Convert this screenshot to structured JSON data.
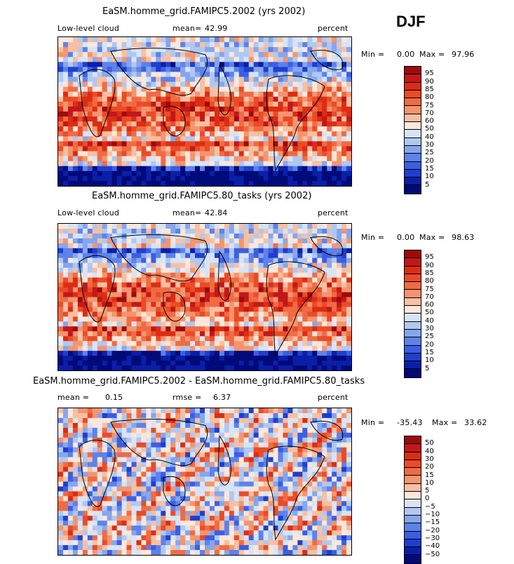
{
  "season": "DJF",
  "chart_data": [
    {
      "type": "heatmap",
      "title": "EaSM.homme_grid.FAMIPC5.2002 (yrs 2002)",
      "variable": "Low-level cloud",
      "mean_label": "mean=",
      "mean": "42.99",
      "units": "percent",
      "min_label": "Min =",
      "min": "0.00",
      "max_label": "Max =",
      "max": "97.96",
      "levels": [
        "95",
        "90",
        "85",
        "80",
        "75",
        "70",
        "60",
        "50",
        "40",
        "30",
        "25",
        "20",
        "15",
        "10",
        "5"
      ],
      "colors": [
        "#9e0a0c",
        "#c1181a",
        "#dc2d14",
        "#eb4b27",
        "#f06b43",
        "#f4956f",
        "#f7c0a3",
        "#fbe7db",
        "#d8e4f6",
        "#b0c8f0",
        "#86a6ec",
        "#5d82ea",
        "#3b5ee3",
        "#1e3fcd",
        "#0a1fa8",
        "#000a78"
      ]
    },
    {
      "type": "heatmap",
      "title": "EaSM.homme_grid.FAMIPC5.80_tasks (yrs 2002)",
      "variable": "Low-level cloud",
      "mean_label": "mean=",
      "mean": "42.84",
      "units": "percent",
      "min_label": "Min =",
      "min": "0.00",
      "max_label": "Max =",
      "max": "98.63",
      "levels": [
        "95",
        "90",
        "85",
        "80",
        "75",
        "70",
        "60",
        "50",
        "40",
        "30",
        "25",
        "20",
        "15",
        "10",
        "5"
      ],
      "colors": [
        "#9e0a0c",
        "#c1181a",
        "#dc2d14",
        "#eb4b27",
        "#f06b43",
        "#f4956f",
        "#f7c0a3",
        "#fbe7db",
        "#d8e4f6",
        "#b0c8f0",
        "#86a6ec",
        "#5d82ea",
        "#3b5ee3",
        "#1e3fcd",
        "#0a1fa8",
        "#000a78"
      ]
    },
    {
      "type": "heatmap",
      "title": "EaSM.homme_grid.FAMIPC5.2002 - EaSM.homme_grid.FAMIPC5.80_tasks",
      "mean_label": "mean =",
      "mean": "0.15",
      "rmse_label": "rmse =",
      "rmse": "6.37",
      "units": "percent",
      "min_label": "Min =",
      "min": "-35.43",
      "max_label": "Max =",
      "max": "33.62",
      "levels": [
        "50",
        "40",
        "30",
        "20",
        "15",
        "10",
        "5",
        "0",
        "−5",
        "−10",
        "−15",
        "−20",
        "−30",
        "−40",
        "−50"
      ],
      "colors": [
        "#9e0a0c",
        "#c1181a",
        "#dc2d14",
        "#eb4b27",
        "#f06b43",
        "#f4956f",
        "#f7c0a3",
        "#fbe7db",
        "#d8e4f6",
        "#b0c8f0",
        "#86a6ec",
        "#5d82ea",
        "#3b5ee3",
        "#1e3fcd",
        "#0a1fa8",
        "#000a78"
      ]
    }
  ]
}
